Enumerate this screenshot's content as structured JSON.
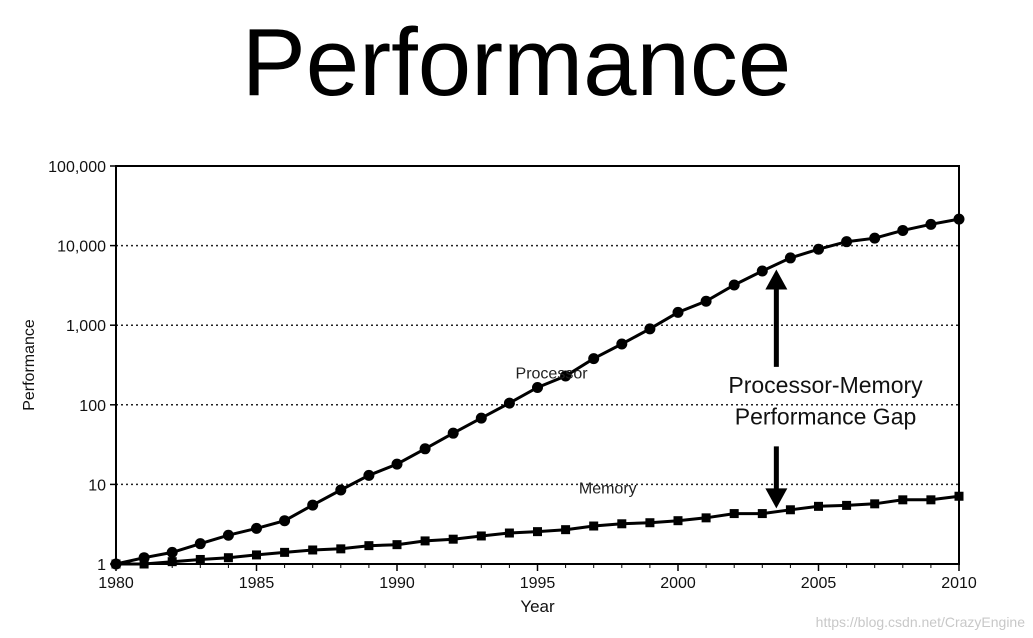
{
  "slide": {
    "title": "Performance"
  },
  "watermark": "https://blog.csdn.net/CrazyEngine",
  "chart_data": {
    "type": "line",
    "title": "",
    "xlabel": "Year",
    "ylabel": "Performance",
    "yscale": "log",
    "xlim": [
      1980,
      2010
    ],
    "ylim": [
      1,
      100000
    ],
    "x_ticks": [
      1980,
      1985,
      1990,
      1995,
      2000,
      2005,
      2010
    ],
    "y_ticks": [
      1,
      10,
      100,
      1000,
      10000,
      100000
    ],
    "y_tick_labels": [
      "1",
      "10",
      "100",
      "1,000",
      "10,000",
      "100,000"
    ],
    "grid": "horizontal dotted at 10, 100, 1,000, 10,000",
    "legend": "none",
    "x": [
      1980,
      1981,
      1982,
      1983,
      1984,
      1985,
      1986,
      1987,
      1988,
      1989,
      1990,
      1991,
      1992,
      1993,
      1994,
      1995,
      1996,
      1997,
      1998,
      1999,
      2000,
      2001,
      2002,
      2003,
      2004,
      2005,
      2006,
      2007,
      2008,
      2009,
      2010
    ],
    "series": [
      {
        "name": "Processor",
        "marker": "circle",
        "values": [
          1,
          1.2,
          1.4,
          1.8,
          2.3,
          2.8,
          3.5,
          5.5,
          8.5,
          13,
          18,
          28,
          44,
          68,
          105,
          165,
          230,
          380,
          580,
          900,
          1450,
          2000,
          3200,
          4800,
          7000,
          9000,
          11200,
          12400,
          15500,
          18500,
          21500
        ]
      },
      {
        "name": "Memory",
        "marker": "square",
        "values": [
          1,
          1,
          1.07,
          1.14,
          1.2,
          1.3,
          1.4,
          1.5,
          1.55,
          1.7,
          1.75,
          1.95,
          2.05,
          2.25,
          2.45,
          2.55,
          2.7,
          3.0,
          3.2,
          3.3,
          3.5,
          3.8,
          4.3,
          4.3,
          4.8,
          5.3,
          5.45,
          5.7,
          6.4,
          6.4,
          7.1
        ]
      }
    ],
    "annotations": [
      {
        "text": "Processor-Memory",
        "x": 2005.25,
        "y": 100
      },
      {
        "text": "Performance Gap",
        "x": 2005.25,
        "y": 40
      }
    ],
    "arrow": {
      "x": 2003.5,
      "from_y": 300,
      "to_y": 5000,
      "down_from_y": 30,
      "down_to_y": 5
    },
    "series_labels": [
      {
        "series": "Processor",
        "x": 1995.5,
        "y": 180
      },
      {
        "series": "Memory",
        "x": 1997.5,
        "y": 6.5
      }
    ]
  }
}
